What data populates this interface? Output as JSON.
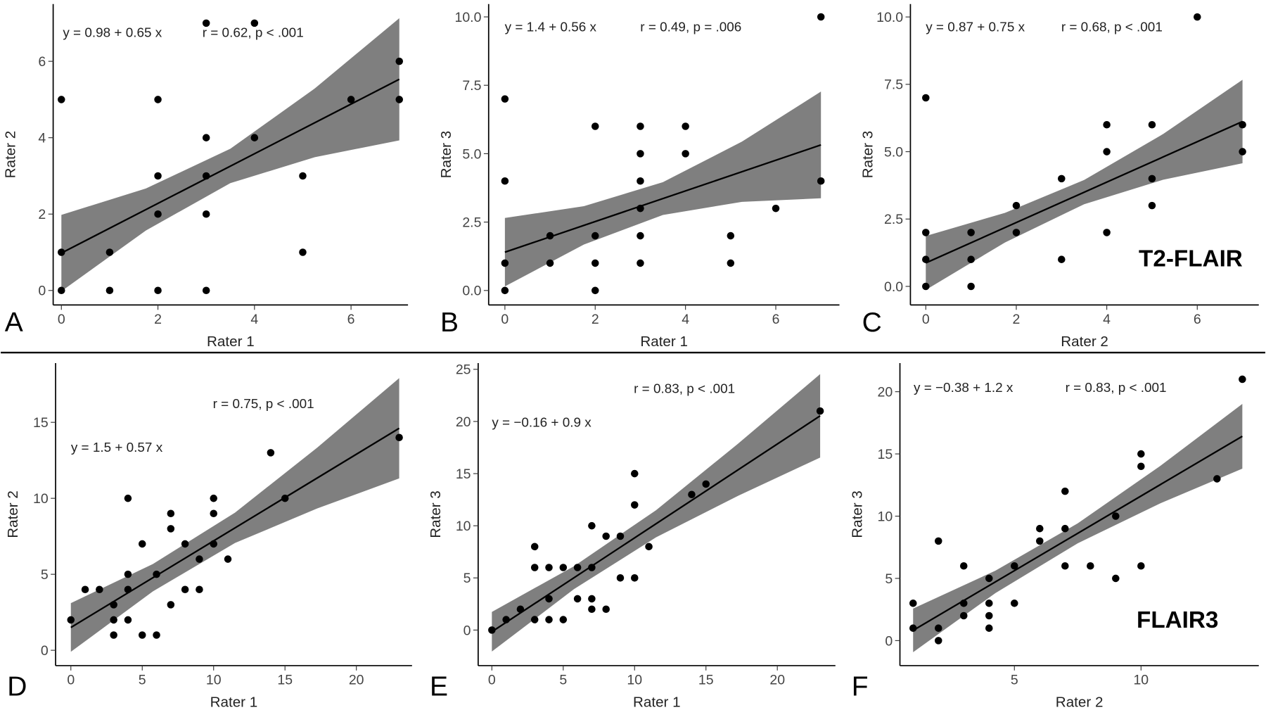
{
  "chart_data": [
    {
      "type": "scatter",
      "panel_label": "A",
      "xlabel": "Rater 1",
      "ylabel": "Rater 2",
      "equation": "y = 0.98 + 0.65 x",
      "stat": "r = 0.62, p < .001",
      "x": [
        0,
        0,
        0,
        1,
        1,
        2,
        2,
        2,
        2,
        3,
        3,
        3,
        3,
        3,
        4,
        4,
        5,
        5,
        6,
        7,
        7
      ],
      "values": [
        5,
        1,
        0,
        1,
        0,
        5,
        3,
        2,
        0,
        7,
        4,
        3,
        2,
        0,
        7,
        4,
        3,
        1,
        5,
        6,
        5
      ],
      "fit": {
        "x": [
          0,
          7
        ],
        "values": [
          0.98,
          5.53
        ]
      },
      "band": {
        "x": [
          0,
          1.75,
          3.5,
          5.25,
          7
        ],
        "upper": [
          1.98,
          2.67,
          3.71,
          5.29,
          7.13
        ],
        "lower": [
          -0.02,
          1.57,
          2.81,
          3.49,
          3.93
        ]
      },
      "xlim": [
        -0.17,
        7.18
      ],
      "ylim": [
        -0.38,
        7.5
      ],
      "xticks": [
        0,
        2,
        4,
        6
      ],
      "yticks": [
        0,
        2,
        4,
        6
      ]
    },
    {
      "type": "scatter",
      "panel_label": "B",
      "xlabel": "Rater 1",
      "ylabel": "Rater 3",
      "equation": "y = 1.4 + 0.56 x",
      "stat": "r = 0.49, p = .006",
      "x": [
        0,
        0,
        0,
        0,
        1,
        1,
        2,
        2,
        2,
        2,
        3,
        3,
        3,
        3,
        3,
        3,
        4,
        4,
        5,
        5,
        6,
        7,
        7
      ],
      "values": [
        7,
        4,
        1,
        0,
        2,
        1,
        6,
        2,
        1,
        0,
        6,
        5,
        4,
        3,
        2,
        1,
        6,
        5,
        2,
        1,
        3,
        10,
        4
      ],
      "fit": {
        "x": [
          0,
          7
        ],
        "values": [
          1.4,
          5.32
        ]
      },
      "band": {
        "x": [
          0,
          1.75,
          3.5,
          5.25,
          7
        ],
        "upper": [
          2.65,
          3.08,
          3.96,
          5.44,
          7.27
        ],
        "lower": [
          0.15,
          1.68,
          2.76,
          3.24,
          3.37
        ]
      },
      "xlim": [
        -0.36,
        7.41
      ],
      "ylim": [
        -0.53,
        10.47
      ],
      "xticks": [
        0,
        2,
        4,
        6
      ],
      "yticks": [
        {
          "value": 0,
          "label": "0.0"
        },
        {
          "value": 2.5,
          "label": "2.5"
        },
        {
          "value": 5,
          "label": "5.0"
        },
        {
          "value": 7.5,
          "label": "7.5"
        },
        {
          "value": 10,
          "label": "10.0"
        }
      ]
    },
    {
      "type": "scatter",
      "panel_label": "C",
      "xlabel": "Rater 2",
      "ylabel": "Rater 3",
      "equation": "y = 0.87 + 0.75 x",
      "stat": "r = 0.68, p < .001",
      "annotation": "T2-FLAIR",
      "x": [
        0,
        0,
        0,
        0,
        1,
        1,
        1,
        2,
        2,
        3,
        3,
        4,
        4,
        4,
        5,
        5,
        5,
        6,
        7,
        7
      ],
      "values": [
        7,
        2,
        1,
        0,
        2,
        1,
        0,
        3,
        2,
        4,
        1,
        6,
        5,
        2,
        6,
        4,
        3,
        10,
        6,
        5
      ],
      "fit": {
        "x": [
          0,
          7
        ],
        "values": [
          0.87,
          6.12
        ]
      },
      "band": {
        "x": [
          0,
          1.75,
          3.5,
          5.25,
          7
        ],
        "upper": [
          1.87,
          2.73,
          3.95,
          5.66,
          7.67
        ],
        "lower": [
          -0.13,
          1.63,
          3.05,
          3.96,
          4.57
        ]
      },
      "xlim": [
        -0.34,
        7.36
      ],
      "ylim": [
        -0.69,
        10.48
      ],
      "xticks": [
        0,
        2,
        4,
        6
      ],
      "yticks": [
        {
          "value": 0,
          "label": "0.0"
        },
        {
          "value": 2.5,
          "label": "2.5"
        },
        {
          "value": 5,
          "label": "5.0"
        },
        {
          "value": 7.5,
          "label": "7.5"
        },
        {
          "value": 10,
          "label": "10.0"
        }
      ]
    },
    {
      "type": "scatter",
      "panel_label": "D",
      "xlabel": "Rater 1",
      "ylabel": "Rater 2",
      "equation": "y = 1.5 + 0.57 x",
      "stat": "r = 0.75, p < .001",
      "x": [
        0,
        1,
        2,
        3,
        3,
        3,
        4,
        4,
        4,
        4,
        5,
        5,
        6,
        6,
        7,
        7,
        7,
        8,
        8,
        9,
        9,
        10,
        10,
        10,
        11,
        14,
        15,
        23
      ],
      "values": [
        2,
        4,
        4,
        3,
        2,
        1,
        10,
        5,
        4,
        2,
        7,
        1,
        5,
        1,
        9,
        8,
        3,
        7,
        4,
        6,
        4,
        10,
        9,
        7,
        6,
        13,
        10,
        14
      ],
      "fit": {
        "x": [
          0,
          23
        ],
        "values": [
          1.5,
          14.61
        ]
      },
      "band": {
        "x": [
          0,
          5.75,
          11.5,
          17.25,
          23
        ],
        "upper": [
          3.1,
          5.68,
          9.06,
          13.33,
          17.91
        ],
        "lower": [
          -0.1,
          3.88,
          7.06,
          9.33,
          11.31
        ]
      },
      "xlim": [
        -1.07,
        23.9
      ],
      "ylim": [
        -1.01,
        18.9
      ],
      "xticks": [
        0,
        5,
        10,
        15,
        20
      ],
      "yticks": [
        0,
        5,
        10,
        15
      ]
    },
    {
      "type": "scatter",
      "panel_label": "E",
      "xlabel": "Rater 1",
      "ylabel": "Rater 3",
      "equation": "y = −0.16 + 0.9 x",
      "stat": "r = 0.83, p < .001",
      "x": [
        0,
        1,
        2,
        3,
        3,
        3,
        4,
        4,
        4,
        5,
        5,
        6,
        6,
        7,
        7,
        7,
        7,
        8,
        8,
        9,
        9,
        10,
        10,
        10,
        11,
        14,
        15,
        23
      ],
      "values": [
        0,
        1,
        2,
        8,
        6,
        1,
        6,
        3,
        1,
        6,
        1,
        6,
        3,
        10,
        6,
        3,
        2,
        9,
        2,
        9,
        5,
        15,
        12,
        5,
        8,
        13,
        14,
        21
      ],
      "fit": {
        "x": [
          0,
          23
        ],
        "values": [
          -0.16,
          20.54
        ]
      },
      "band": {
        "x": [
          0,
          5.75,
          11.5,
          17.25,
          23
        ],
        "upper": [
          1.74,
          6.12,
          11.49,
          17.87,
          24.54
        ],
        "lower": [
          -2.06,
          3.92,
          8.89,
          12.87,
          16.54
        ]
      },
      "xlim": [
        -0.96,
        24.07
      ],
      "ylim": [
        -3.41,
        25.6
      ],
      "xticks": [
        0,
        5,
        10,
        15,
        20
      ],
      "yticks": [
        0,
        5,
        10,
        15,
        20,
        25
      ]
    },
    {
      "type": "scatter",
      "panel_label": "F",
      "xlabel": "Rater 2",
      "ylabel": "Rater 3",
      "equation": "y = −0.38 + 1.2 x",
      "stat": "r = 0.83, p < .001",
      "annotation": "FLAIR3",
      "x": [
        1,
        1,
        2,
        2,
        2,
        3,
        3,
        3,
        4,
        4,
        4,
        4,
        5,
        5,
        6,
        6,
        7,
        7,
        7,
        8,
        9,
        9,
        10,
        10,
        10,
        13,
        14
      ],
      "values": [
        3,
        1,
        8,
        1,
        0,
        6,
        3,
        2,
        5,
        3,
        2,
        1,
        6,
        3,
        9,
        8,
        12,
        9,
        6,
        6,
        10,
        5,
        15,
        14,
        6,
        13,
        21
      ],
      "fit": {
        "x": [
          1,
          14
        ],
        "values": [
          0.82,
          16.42
        ]
      },
      "band": {
        "x": [
          1,
          4.25,
          7.5,
          10.75,
          14
        ],
        "upper": [
          2.57,
          5.62,
          9.42,
          14.02,
          19.02
        ],
        "lower": [
          -0.93,
          3.82,
          7.82,
          11.02,
          13.82
        ]
      },
      "xlim": [
        0.48,
        14.65
      ],
      "ylim": [
        -2.01,
        22.3
      ],
      "xticks": [
        5,
        10
      ],
      "yticks": [
        0,
        5,
        10,
        15,
        20
      ]
    }
  ]
}
